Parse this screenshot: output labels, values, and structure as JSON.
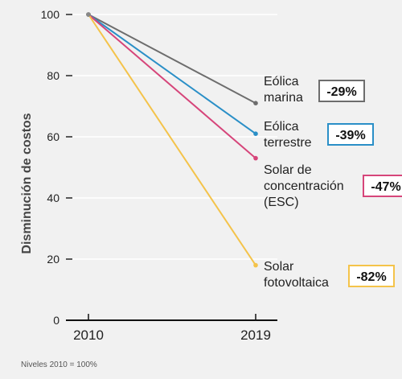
{
  "chart_data": {
    "type": "line",
    "title": "",
    "xlabel": "",
    "ylabel": "Disminución de costos",
    "x": [
      "2010",
      "2019"
    ],
    "ylim": [
      0,
      100
    ],
    "yticks": [
      "0",
      "20",
      "40",
      "60",
      "80",
      "100"
    ],
    "grid": true,
    "footnote": "Niveles 2010 = 100%",
    "series": [
      {
        "name": "Eólica marina",
        "label_lines": [
          "Eólica",
          "marina"
        ],
        "values": [
          100,
          71
        ],
        "change": "-29%",
        "color": "#6d6d6d"
      },
      {
        "name": "Eólica terrestre",
        "label_lines": [
          "Eólica",
          "terrestre"
        ],
        "values": [
          100,
          61
        ],
        "change": "-39%",
        "color": "#2a8fc7"
      },
      {
        "name": "Solar de concentración (ESC)",
        "label_lines": [
          "Solar de",
          "concentración",
          "(ESC)"
        ],
        "values": [
          100,
          53
        ],
        "change": "-47%",
        "color": "#d6457a"
      },
      {
        "name": "Solar fotovoltaica",
        "label_lines": [
          "Solar",
          "fotovoltaica"
        ],
        "values": [
          100,
          18
        ],
        "change": "-82%",
        "color": "#f4c34a"
      }
    ]
  }
}
